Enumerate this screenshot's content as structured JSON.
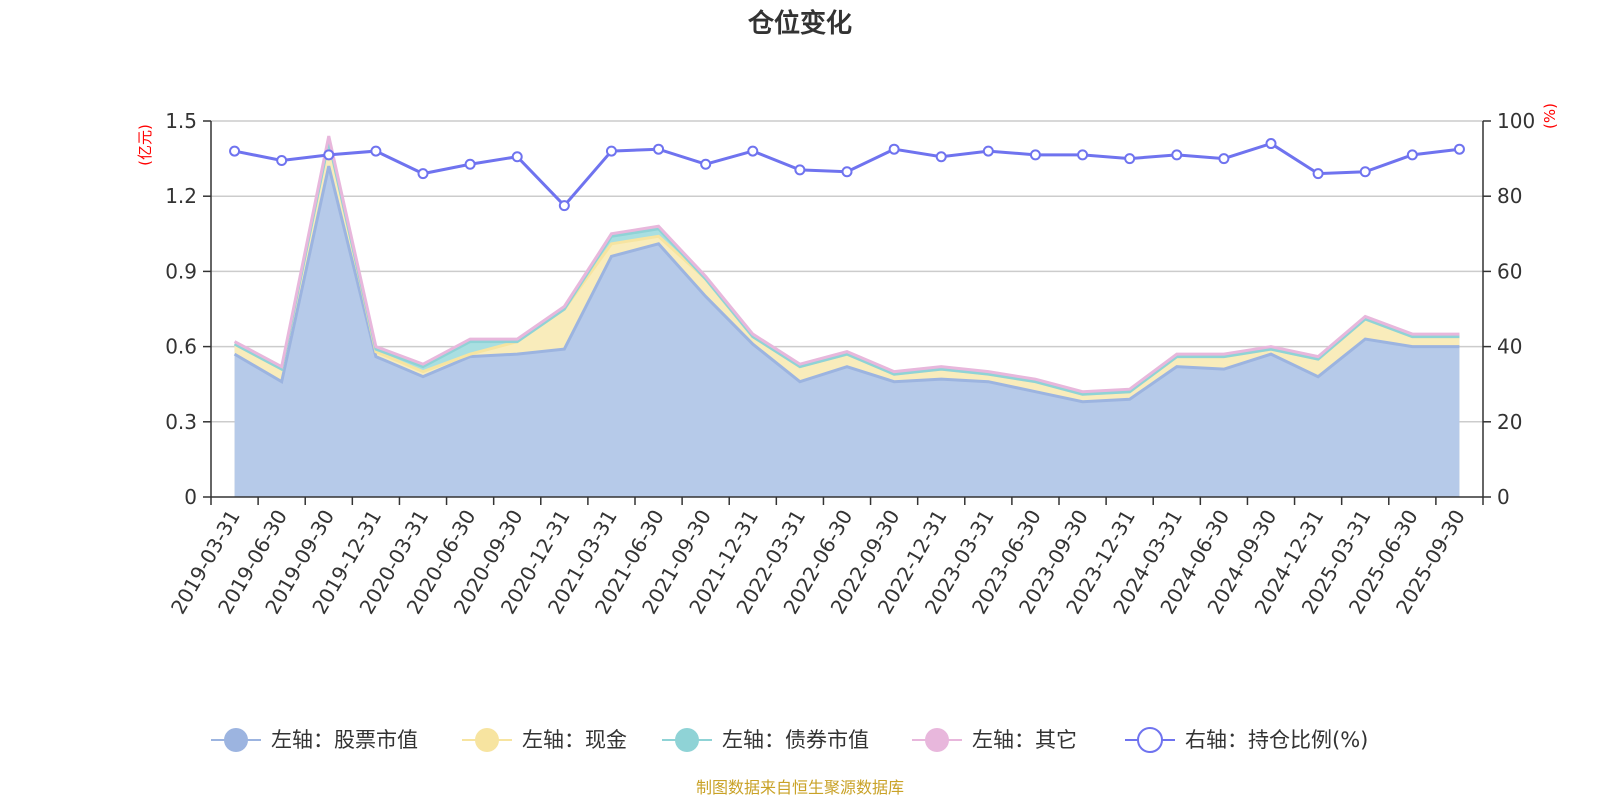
{
  "chart_data": {
    "type": "area",
    "title": "仓位变化",
    "left_unit": "(亿元)",
    "right_unit": "(%)",
    "source": "制图数据来自恒生聚源数据库",
    "categories": [
      "2019-03-31",
      "2019-06-30",
      "2019-09-30",
      "2019-12-31",
      "2020-03-31",
      "2020-06-30",
      "2020-09-30",
      "2020-12-31",
      "2021-03-31",
      "2021-06-30",
      "2021-09-30",
      "2021-12-31",
      "2022-03-31",
      "2022-06-30",
      "2022-09-30",
      "2022-12-31",
      "2023-03-31",
      "2023-06-30",
      "2023-09-30",
      "2023-12-31",
      "2024-03-31",
      "2024-06-30",
      "2024-09-30",
      "2024-12-31",
      "2025-03-31",
      "2025-06-30",
      "2025-09-30"
    ],
    "left_axis": {
      "min": 0,
      "max": 1.5,
      "ticks": [
        "0",
        "0.3",
        "0.6",
        "0.9",
        "1.2",
        "1.5"
      ],
      "tick_values": [
        0,
        0.3,
        0.6,
        0.9,
        1.2,
        1.5
      ]
    },
    "right_axis": {
      "min": 0,
      "max": 100,
      "ticks": [
        "0",
        "20",
        "40",
        "60",
        "80",
        "100"
      ],
      "tick_values": [
        0,
        20,
        40,
        60,
        80,
        100
      ]
    },
    "series": [
      {
        "name": "左轴：股票市值",
        "axis": "left",
        "stacked": true,
        "color": "#9cb4e0",
        "fill": "#b6cae9",
        "values": [
          0.57,
          0.46,
          1.32,
          0.56,
          0.48,
          0.56,
          0.57,
          0.59,
          0.96,
          1.01,
          0.8,
          0.61,
          0.46,
          0.52,
          0.46,
          0.47,
          0.46,
          0.42,
          0.38,
          0.39,
          0.52,
          0.51,
          0.57,
          0.48,
          0.63,
          0.6,
          0.6
        ]
      },
      {
        "name": "左轴：现金",
        "axis": "left",
        "stacked": true,
        "color": "#f7e4a0",
        "fill": "#f9ecbb",
        "values": [
          0.04,
          0.05,
          0.1,
          0.02,
          0.02,
          0.01,
          0.05,
          0.16,
          0.05,
          0.03,
          0.07,
          0.03,
          0.06,
          0.05,
          0.03,
          0.04,
          0.03,
          0.04,
          0.03,
          0.03,
          0.04,
          0.05,
          0.02,
          0.07,
          0.08,
          0.04,
          0.04
        ]
      },
      {
        "name": "左轴：债券市值",
        "axis": "left",
        "stacked": true,
        "color": "#8fd3d6",
        "fill": "#a9dfe1",
        "values": [
          0,
          0,
          0,
          0.01,
          0.02,
          0.05,
          0,
          0,
          0.03,
          0.03,
          0,
          0,
          0,
          0,
          0,
          0,
          0,
          0,
          0,
          0,
          0,
          0,
          0,
          0,
          0,
          0,
          0
        ]
      },
      {
        "name": "左轴：其它",
        "axis": "left",
        "stacked": true,
        "color": "#e8b7dc",
        "fill": "#efcbe6",
        "values": [
          0.01,
          0.01,
          0.02,
          0.01,
          0.01,
          0.01,
          0.01,
          0.01,
          0.01,
          0.01,
          0.01,
          0.01,
          0.01,
          0.01,
          0.01,
          0.01,
          0.01,
          0.01,
          0.01,
          0.01,
          0.01,
          0.01,
          0.01,
          0.01,
          0.01,
          0.01,
          0.01
        ]
      },
      {
        "name": "右轴：持仓比例(%)",
        "axis": "right",
        "stacked": false,
        "type": "line",
        "color": "#6f73ef",
        "values": [
          92,
          89.5,
          91,
          92,
          86,
          88.5,
          90.5,
          77.5,
          92,
          92.5,
          88.5,
          92,
          87,
          86.5,
          92.5,
          90.5,
          92,
          91,
          91,
          90,
          91,
          90,
          94,
          86,
          86.5,
          91,
          92.5
        ]
      }
    ]
  }
}
